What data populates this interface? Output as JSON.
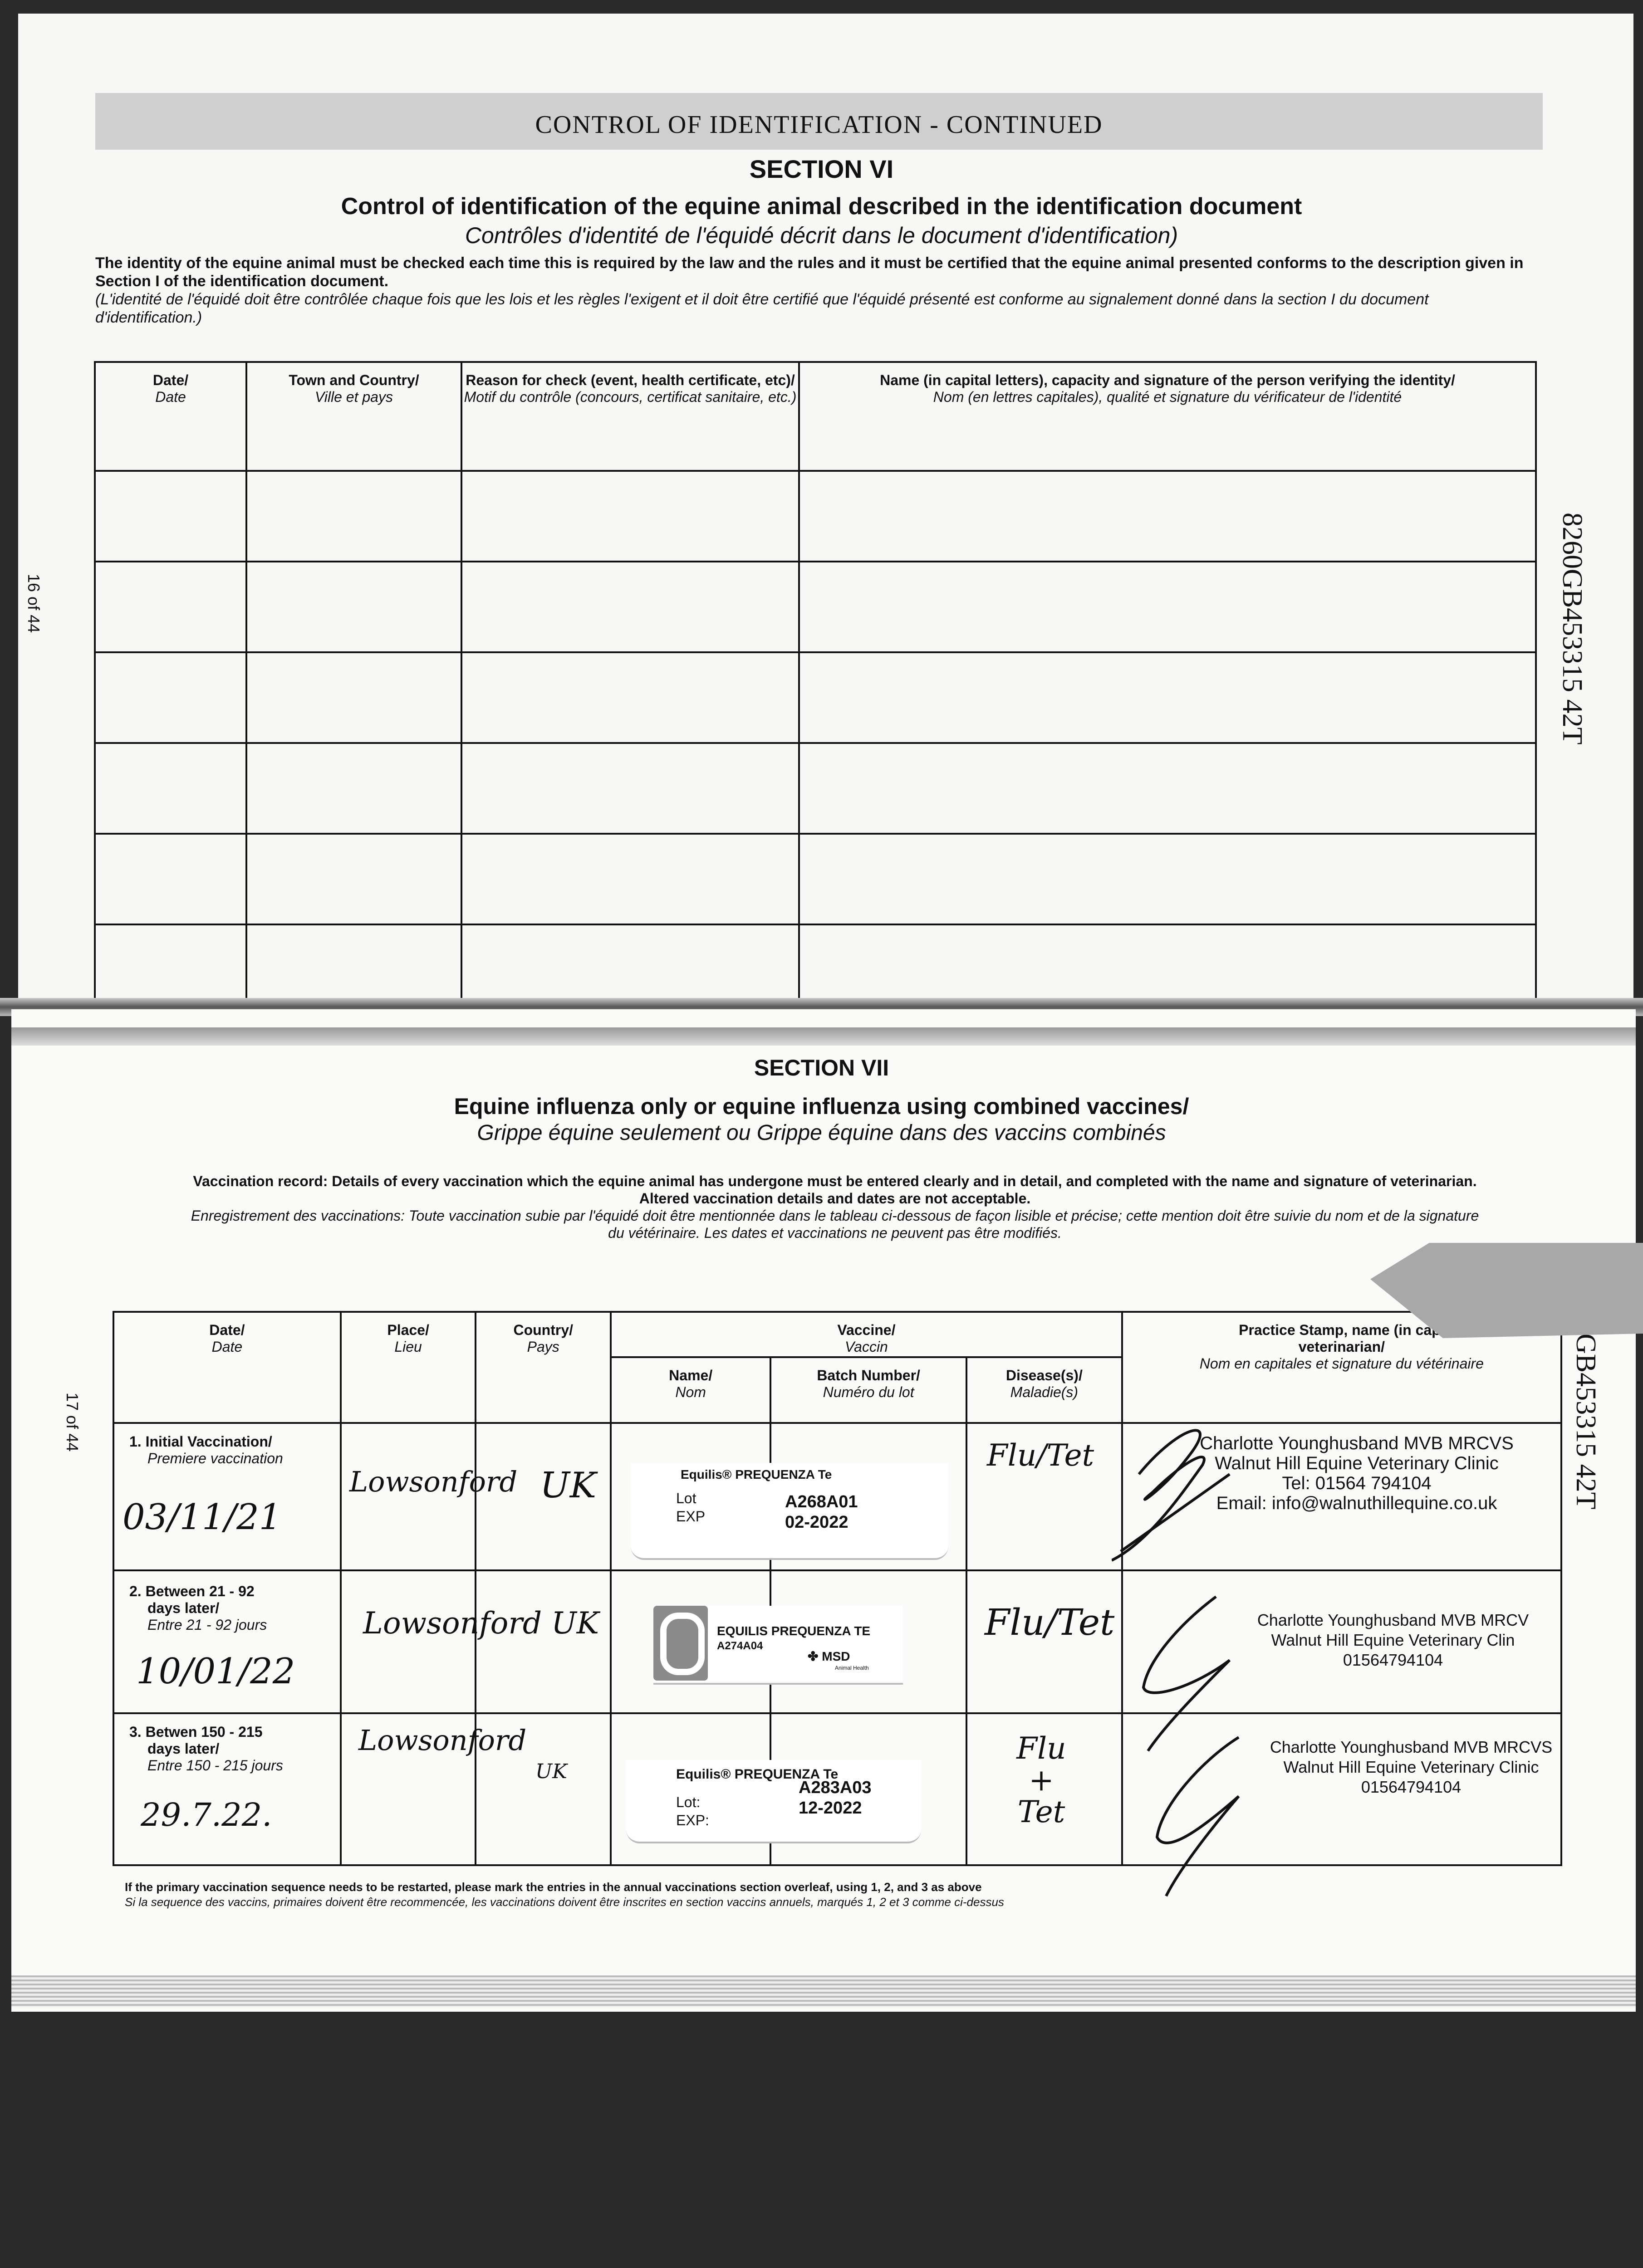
{
  "top_page": {
    "banner": "CONTROL OF IDENTIFICATION - CONTINUED",
    "section": "SECTION VI",
    "title": "Control of identification of the equine animal described in the identification document",
    "title_fr": "Contrôles d'identité de l'équidé décrit dans le document d'identification)",
    "instructions": "The identity of the equine animal must be checked each time this is required by the law and the rules and it must be certified that the equine animal presented conforms to the description given in Section I of the identification document.",
    "instructions_fr": "(L'identité de l'équidé doit être contrôlée chaque fois que les lois et les règles l'exigent et il doit être certifié que l'équidé présenté est conforme au signalement donné dans la section I du document d'identification.)",
    "page_number": "16 of 44",
    "passport_number": "8260GB453315 42T",
    "columns": [
      {
        "en": "Date/",
        "fr": "Date"
      },
      {
        "en": "Town and Country/",
        "fr": "Ville et pays"
      },
      {
        "en": "Reason for check (event, health certificate, etc)/",
        "fr": "Motif du contrôle (concours, certificat sanitaire, etc.)"
      },
      {
        "en": "Name (in capital letters), capacity and signature of the person verifying the identity/",
        "fr": "Nom (en lettres capitales), qualité et signature du vérificateur de l'identité"
      }
    ],
    "empty_rows": 6
  },
  "bottom_page": {
    "section": "SECTION VII",
    "title": "Equine influenza only or equine influenza using combined vaccines/",
    "title_fr": "Grippe équine seulement ou Grippe équine dans des vaccins combinés",
    "instructions": "Vaccination record: Details of every vaccination which the equine animal has undergone must be entered clearly and in detail, and completed with the name and signature of veterinarian.",
    "instructions_2": "Altered vaccination details and dates are not acceptable.",
    "instructions_fr": "Enregistrement des vaccinations: Toute vaccination subie par l'équidé doit être mentionnée dans le tableau ci-dessous de façon lisible et précise; cette mention doit être suivie du nom et de la signature",
    "instructions_fr_2": "du vétérinaire. Les dates et vaccinations ne peuvent pas être modifiés.",
    "page_number": "17 of 44",
    "passport_number": "GB453315 42T",
    "headers": {
      "date": {
        "en": "Date/",
        "fr": "Date"
      },
      "place": {
        "en": "Place/",
        "fr": "Lieu"
      },
      "country": {
        "en": "Country/",
        "fr": "Pays"
      },
      "vaccine": {
        "en": "Vaccine/",
        "fr": "Vaccin"
      },
      "name": {
        "en": "Name/",
        "fr": "Nom"
      },
      "batch": {
        "en": "Batch Number/",
        "fr": "Numéro du lot"
      },
      "disease": {
        "en": "Disease(s)/",
        "fr": "Maladie(s)"
      },
      "stamp": {
        "en": "Practice Stamp, name (in capi",
        "en2": "veterinarian/",
        "fr": "Nom en capitales et signature du vétérinaire"
      }
    },
    "rows": [
      {
        "label": "1. Initial Vaccination/",
        "label_fr": "Premiere vaccination",
        "date": "03/11/21",
        "place": "Lowsonford",
        "country": "UK",
        "sticker_name": "Equilis® PREQUENZA Te",
        "lot_label": "Lot",
        "exp_label": "EXP",
        "lot": "A268A01",
        "exp": "02-2022",
        "disease": "Flu/Tet",
        "vet": [
          "Charlotte Younghusband MVB MRCVS",
          "Walnut Hill Equine Veterinary Clinic",
          "Tel: 01564 794104",
          "Email: info@walnuthillequine.co.uk"
        ]
      },
      {
        "label": "2. Between 21 - 92",
        "label_2": "days later/",
        "label_fr": "Entre 21 - 92 jours",
        "date": "10/01/22",
        "place": "Lowsonford UK",
        "sticker_name": "EQUILIS PREQUENZA TE",
        "lot": "A274A04",
        "brand": "MSD",
        "brand_sub": "Animal Health",
        "disease": "Flu/Tet",
        "vet": [
          "Charlotte Younghusband MVB MRCV",
          "Walnut Hill Equine Veterinary Clin",
          "01564794104"
        ]
      },
      {
        "label": "3. Betwen 150 - 215",
        "label_2": "days later/",
        "label_fr": "Entre 150 - 215 jours",
        "date": "29.7.22.",
        "place": "Lowsonford",
        "country": "UK",
        "sticker_name": "Equilis® PREQUENZA Te",
        "lot_label": "Lot:",
        "exp_label": "EXP:",
        "lot": "A283A03",
        "exp": "12-2022",
        "disease": "Flu + Tet",
        "vet": [
          "Charlotte Younghusband MVB MRCVS",
          "Walnut Hill Equine Veterinary Clinic",
          "01564794104"
        ]
      }
    ],
    "footnote": "If the primary vaccination sequence needs to be restarted, please mark the entries in the annual vaccinations section overleaf, using 1, 2, and 3 as above",
    "footnote_fr": "Si la sequence des vaccins, primaires doivent être recommencée, les vaccinations doivent être inscrites en section vaccins annuels, marqués 1, 2 et 3 comme ci-dessus"
  },
  "colors": {
    "ink": "#111111",
    "banner": "#cfcfcf",
    "scan_background": "#2a2a2a",
    "tab": "#a8a8a8",
    "q_logo": "#8a8a8a"
  }
}
